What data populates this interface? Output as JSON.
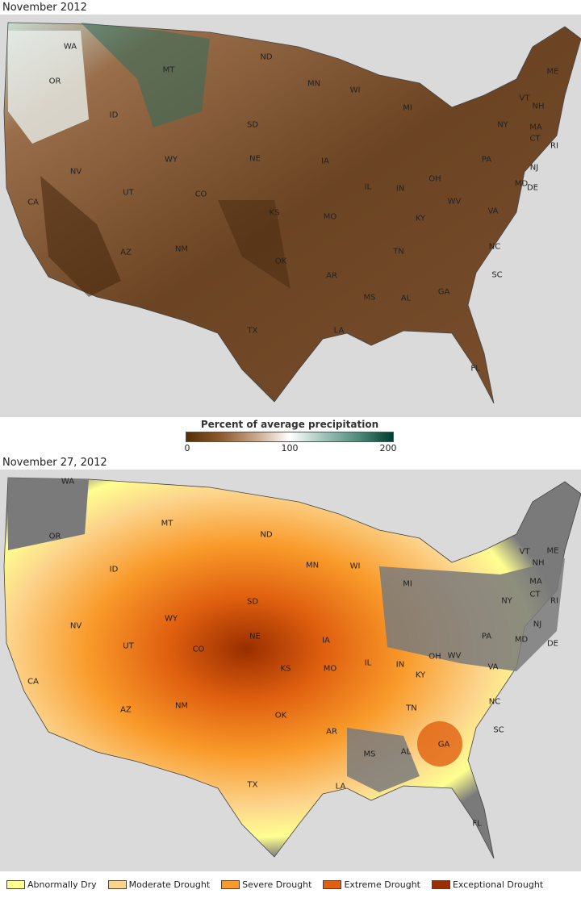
{
  "top_map": {
    "title": "November 2012",
    "colorbar": {
      "title": "Percent of average precipitation",
      "ticks": [
        "0",
        "100",
        "200"
      ],
      "colors": [
        "#543005",
        "#ffffff",
        "#003c30"
      ]
    }
  },
  "bottom_map": {
    "title": "November 27, 2012"
  },
  "states": [
    "WA",
    "OR",
    "ID",
    "MT",
    "ND",
    "MN",
    "WI",
    "MI",
    "SD",
    "WY",
    "NV",
    "UT",
    "CO",
    "NE",
    "IA",
    "IL",
    "IN",
    "OH",
    "PA",
    "NY",
    "ME",
    "VT",
    "NH",
    "MA",
    "CT",
    "RI",
    "NJ",
    "DE",
    "MD",
    "WV",
    "VA",
    "KY",
    "TN",
    "NC",
    "SC",
    "GA",
    "AL",
    "MS",
    "LA",
    "AR",
    "MO",
    "KS",
    "OK",
    "TX",
    "NM",
    "AZ",
    "CA",
    "FL"
  ],
  "legend": [
    {
      "label": "Abnormally Dry",
      "color": "#ffff90"
    },
    {
      "label": "Moderate Drought",
      "color": "#fcd48c"
    },
    {
      "label": "Severe Drought",
      "color": "#f99a2a"
    },
    {
      "label": "Extreme Drought",
      "color": "#e0600f"
    },
    {
      "label": "Exceptional Drought",
      "color": "#9a2e00"
    }
  ]
}
